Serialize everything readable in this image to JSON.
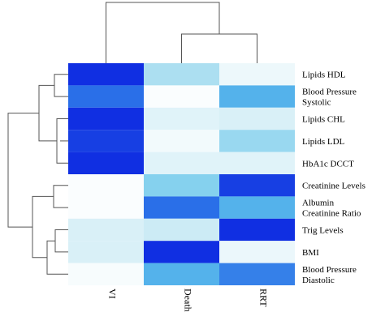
{
  "chart_data": {
    "type": "heatmap",
    "title": "",
    "xlabel": "",
    "ylabel": "",
    "columns": [
      "VI",
      "Death",
      "RRT"
    ],
    "rows": [
      [
        "Lipids HDL"
      ],
      [
        "Blood Pressure",
        "Systolic"
      ],
      [
        "Lipids CHL"
      ],
      [
        "Lipids LDL"
      ],
      [
        "HbA1c DCCT"
      ],
      [
        "Creatinine Levels"
      ],
      [
        "Albumin",
        "Creatinine Ratio"
      ],
      [
        "Trig Levels"
      ],
      [
        "BMI"
      ],
      [
        "Blood Pressure",
        "Diastolic"
      ]
    ],
    "values": [
      [
        0.95,
        0.3,
        0.07
      ],
      [
        0.75,
        0.02,
        0.55
      ],
      [
        0.95,
        0.12,
        0.15
      ],
      [
        0.9,
        0.05,
        0.35
      ],
      [
        0.95,
        0.12,
        0.12
      ],
      [
        0.02,
        0.4,
        0.9
      ],
      [
        0.02,
        0.75,
        0.55
      ],
      [
        0.15,
        0.2,
        0.95
      ],
      [
        0.15,
        0.95,
        0.08
      ],
      [
        0.03,
        0.55,
        0.7
      ]
    ],
    "colorscale": [
      "#ffffff",
      "#bfe6f2",
      "#5fc3ec",
      "#2a6fe8",
      "#0a1fe0"
    ],
    "row_dendrogram": true,
    "column_dendrogram": true
  }
}
